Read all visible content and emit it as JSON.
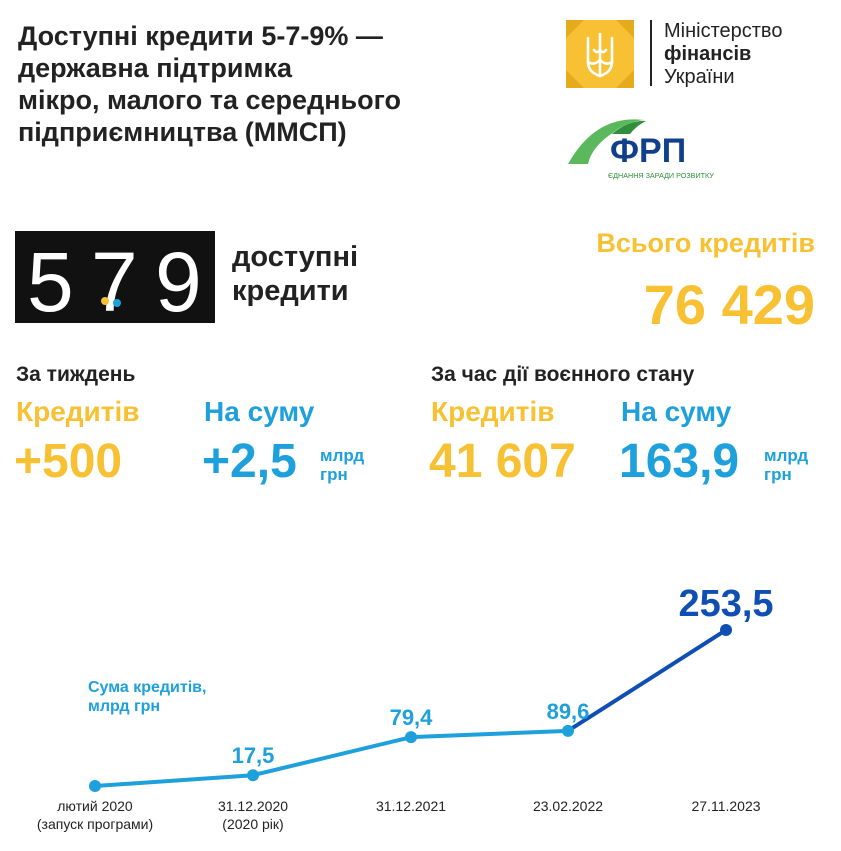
{
  "title": {
    "lines": [
      "Доступні кредити 5-7-9% —",
      "державна підтримка",
      "мікро, малого та середнього",
      "підприємництва (ММСП)"
    ]
  },
  "logos": {
    "minfin": {
      "line1": "Міністерство",
      "line2": "фінансів",
      "line3": "України"
    },
    "frp": {
      "name": "ФРП",
      "tagline": "ЄДНАННЯ ЗАРАДИ РОЗВИТКУ"
    }
  },
  "badge": {
    "digits": [
      "5",
      "7",
      "9"
    ],
    "label_line1": "доступні",
    "label_line2": "кредити"
  },
  "total": {
    "label": "Всього кредитів",
    "value": "76 429"
  },
  "weekly": {
    "heading": "За тиждень",
    "credits_label": "Кредитів",
    "credits_value": "+500",
    "sum_label": "На суму",
    "sum_value": "+2,5",
    "unit_line1": "млрд",
    "unit_line2": "грн"
  },
  "wartime": {
    "heading": "За час дії воєнного стану",
    "credits_label": "Кредитів",
    "credits_value": "41 607",
    "sum_label": "На суму",
    "sum_value": "163,9",
    "unit_line1": "млрд",
    "unit_line2": "грн"
  },
  "chart_data": {
    "type": "line",
    "ylabel": "Сума кредитів, млрд грн",
    "ylabel_lines": [
      "Сума кредитів,",
      "млрд грн"
    ],
    "categories": [
      [
        "лютий 2020",
        "(запуск програми)"
      ],
      [
        "31.12.2020",
        "(2020 рік)"
      ],
      [
        "31.12.2021"
      ],
      [
        "23.02.2022"
      ],
      [
        "27.11.2023"
      ]
    ],
    "values": [
      0,
      17.5,
      79.4,
      89.6,
      253.5
    ],
    "value_labels": [
      "",
      "17,5",
      "79,4",
      "89,6",
      "253,5"
    ],
    "colors": {
      "light": "#1ea0dc",
      "dark": "#0f4fb4"
    },
    "grid": false,
    "legend": "none"
  },
  "colors": {
    "yellow": "#f8c133",
    "blue": "#1ea0dc",
    "dark_blue": "#0f4fb4",
    "badge_bg": "#111111"
  }
}
